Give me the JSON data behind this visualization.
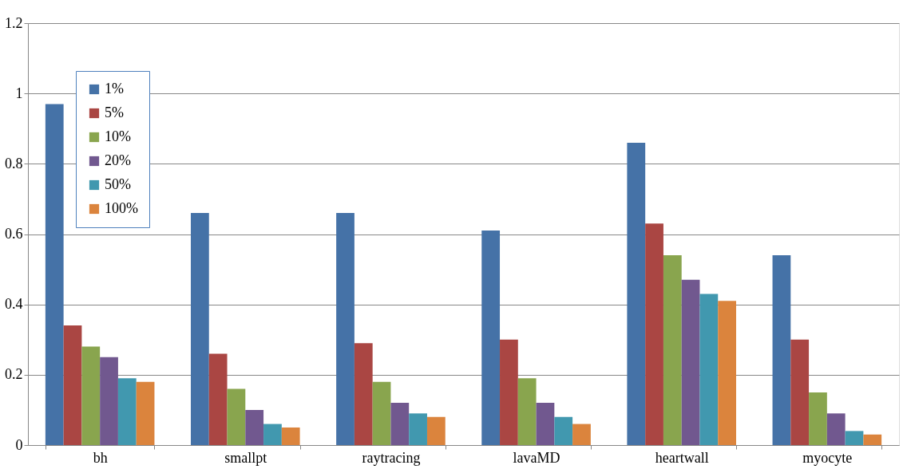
{
  "chart_data": {
    "type": "bar",
    "categories": [
      "bh",
      "smallpt",
      "raytracing",
      "lavaMD",
      "heartwall",
      "myocyte"
    ],
    "series": [
      {
        "name": "1%",
        "color": "#4572a7",
        "values": [
          0.97,
          0.66,
          0.66,
          0.61,
          0.86,
          0.54
        ]
      },
      {
        "name": "5%",
        "color": "#aa4643",
        "values": [
          0.34,
          0.26,
          0.29,
          0.3,
          0.63,
          0.3
        ]
      },
      {
        "name": "10%",
        "color": "#89a54e",
        "values": [
          0.28,
          0.16,
          0.18,
          0.19,
          0.54,
          0.15
        ]
      },
      {
        "name": "20%",
        "color": "#71588f",
        "values": [
          0.25,
          0.1,
          0.12,
          0.12,
          0.47,
          0.09
        ]
      },
      {
        "name": "50%",
        "color": "#4198af",
        "values": [
          0.19,
          0.06,
          0.09,
          0.08,
          0.43,
          0.04
        ]
      },
      {
        "name": "100%",
        "color": "#db843d",
        "values": [
          0.18,
          0.05,
          0.08,
          0.06,
          0.41,
          0.03
        ]
      }
    ],
    "ylim": [
      0,
      1.2
    ],
    "yticks": [
      {
        "value": 0,
        "label": "0"
      },
      0.2,
      0.4,
      0.6,
      0.8,
      {
        "value": 1,
        "label": "1"
      },
      1.2
    ],
    "grid": "y",
    "legend": "top left"
  }
}
